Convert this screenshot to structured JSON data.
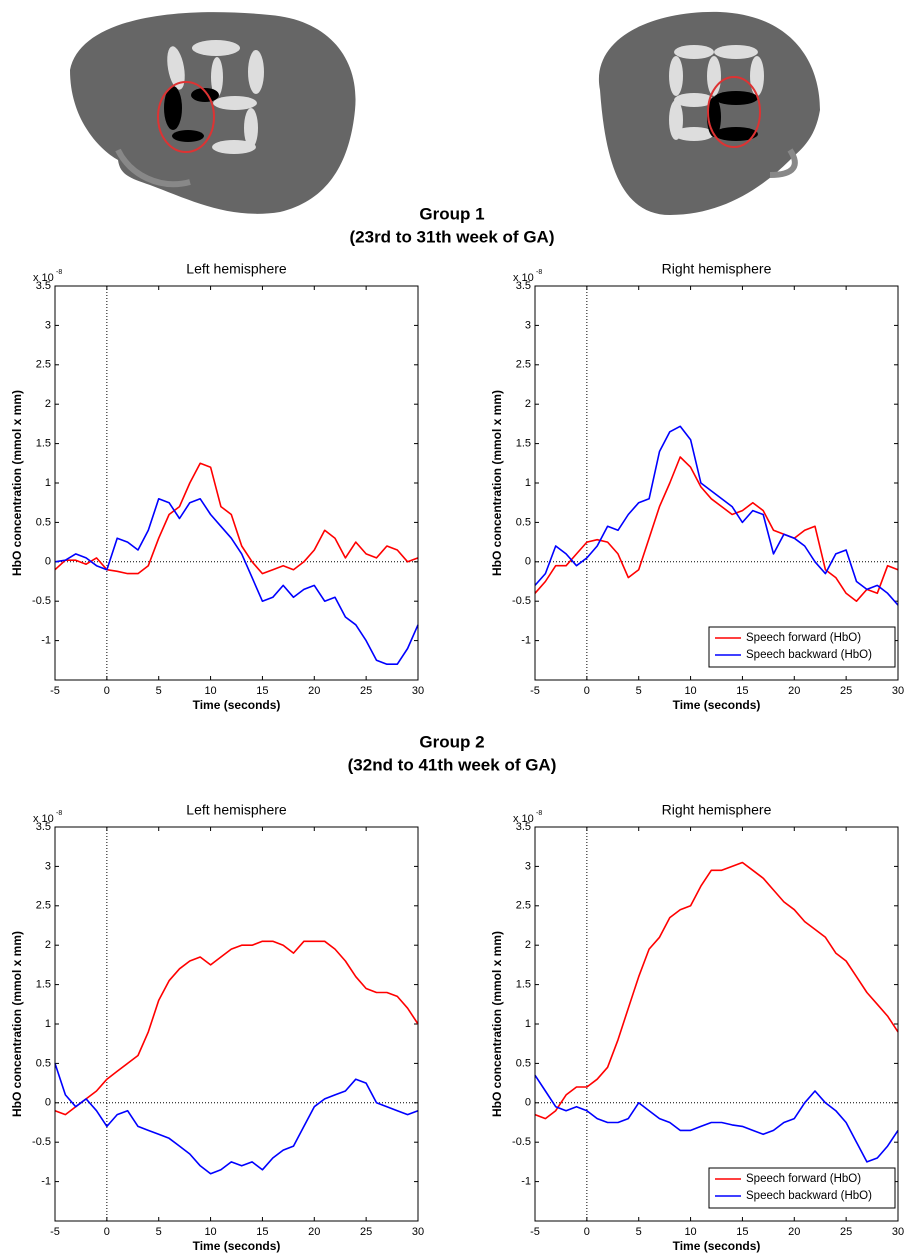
{
  "group1": {
    "title": "Group 1",
    "subtitle": "(23rd to 31th week of GA)"
  },
  "group2": {
    "title": "Group 2",
    "subtitle": "(32nd to 41th week of GA)"
  },
  "chart_data": [
    {
      "type": "line",
      "title": "Left hemisphere",
      "xlabel": "Time (seconds)",
      "ylabel": "HbO concentration (mmol x mm)",
      "y_multiplier": "x 10",
      "y_exponent": "-8",
      "x": [
        -5,
        -4,
        -3,
        -2,
        -1,
        0,
        1,
        2,
        3,
        4,
        5,
        6,
        7,
        8,
        9,
        10,
        11,
        12,
        13,
        14,
        15,
        16,
        17,
        18,
        19,
        20,
        21,
        22,
        23,
        24,
        25,
        26,
        27,
        28,
        29,
        30
      ],
      "series": [
        {
          "name": "Speech forward (HbO)",
          "color": "#ff0000",
          "values": [
            -0.1,
            0.02,
            0.02,
            -0.03,
            0.05,
            -0.1,
            -0.12,
            -0.15,
            -0.15,
            -0.05,
            0.3,
            0.6,
            0.7,
            1.0,
            1.25,
            1.2,
            0.7,
            0.6,
            0.2,
            0.0,
            -0.15,
            -0.1,
            -0.05,
            -0.1,
            0.0,
            0.15,
            0.4,
            0.3,
            0.05,
            0.25,
            0.1,
            0.05,
            0.2,
            0.15,
            0.0,
            0.05
          ]
        },
        {
          "name": "Speech backward (HbO)",
          "color": "#0000ff",
          "values": [
            0,
            0.02,
            0.1,
            0.05,
            -0.05,
            -0.1,
            0.3,
            0.25,
            0.15,
            0.4,
            0.8,
            0.75,
            0.55,
            0.75,
            0.8,
            0.6,
            0.45,
            0.3,
            0.1,
            -0.2,
            -0.5,
            -0.45,
            -0.3,
            -0.45,
            -0.35,
            -0.3,
            -0.5,
            -0.45,
            -0.7,
            -0.8,
            -1.0,
            -1.25,
            -1.3,
            -1.3,
            -1.1,
            -0.8
          ]
        }
      ],
      "xlim": [
        -5,
        30
      ],
      "ylim": [
        -1.5,
        3.5
      ],
      "xticks": [
        -5,
        0,
        5,
        10,
        15,
        20,
        25,
        30
      ],
      "yticks": [
        -1,
        -0.5,
        0,
        0.5,
        1,
        1.5,
        2,
        2.5,
        3,
        3.5
      ]
    },
    {
      "type": "line",
      "title": "Right hemisphere",
      "xlabel": "Time (seconds)",
      "ylabel": "HbO concentration (mmol x mm)",
      "y_multiplier": "x 10",
      "y_exponent": "-8",
      "legend": "lower right",
      "x": [
        -5,
        -4,
        -3,
        -2,
        -1,
        0,
        1,
        2,
        3,
        4,
        5,
        6,
        7,
        8,
        9,
        10,
        11,
        12,
        13,
        14,
        15,
        16,
        17,
        18,
        19,
        20,
        21,
        22,
        23,
        24,
        25,
        26,
        27,
        28,
        29,
        30
      ],
      "series": [
        {
          "name": "Speech forward (HbO)",
          "color": "#ff0000",
          "values": [
            -0.4,
            -0.25,
            -0.05,
            -0.05,
            0.1,
            0.25,
            0.28,
            0.25,
            0.1,
            -0.2,
            -0.1,
            0.3,
            0.7,
            1.0,
            1.33,
            1.2,
            0.95,
            0.8,
            0.7,
            0.6,
            0.65,
            0.75,
            0.65,
            0.4,
            0.35,
            0.3,
            0.4,
            0.45,
            -0.1,
            -0.2,
            -0.4,
            -0.5,
            -0.35,
            -0.4,
            -0.05,
            -0.1
          ]
        },
        {
          "name": "Speech backward (HbO)",
          "color": "#0000ff",
          "values": [
            -0.3,
            -0.15,
            0.2,
            0.1,
            -0.05,
            0.05,
            0.2,
            0.45,
            0.4,
            0.6,
            0.75,
            0.8,
            1.4,
            1.65,
            1.72,
            1.55,
            1.0,
            0.9,
            0.8,
            0.7,
            0.5,
            0.65,
            0.6,
            0.1,
            0.35,
            0.3,
            0.2,
            0.0,
            -0.15,
            0.1,
            0.15,
            -0.25,
            -0.35,
            -0.3,
            -0.4,
            -0.55
          ]
        }
      ],
      "xlim": [
        -5,
        30
      ],
      "ylim": [
        -1.5,
        3.5
      ],
      "xticks": [
        -5,
        0,
        5,
        10,
        15,
        20,
        25,
        30
      ],
      "yticks": [
        -1,
        -0.5,
        0,
        0.5,
        1,
        1.5,
        2,
        2.5,
        3,
        3.5
      ]
    },
    {
      "type": "line",
      "title": "Left hemisphere",
      "xlabel": "Time (seconds)",
      "ylabel": "HbO concentration (mmol x mm)",
      "y_multiplier": "x 10",
      "y_exponent": "-8",
      "x": [
        -5,
        -4,
        -3,
        -2,
        -1,
        0,
        1,
        2,
        3,
        4,
        5,
        6,
        7,
        8,
        9,
        10,
        11,
        12,
        13,
        14,
        15,
        16,
        17,
        18,
        19,
        20,
        21,
        22,
        23,
        24,
        25,
        26,
        27,
        28,
        29,
        30
      ],
      "series": [
        {
          "name": "Speech forward (HbO)",
          "color": "#ff0000",
          "values": [
            -0.1,
            -0.15,
            -0.05,
            0.05,
            0.15,
            0.3,
            0.4,
            0.5,
            0.6,
            0.9,
            1.3,
            1.55,
            1.7,
            1.8,
            1.85,
            1.75,
            1.85,
            1.95,
            2.0,
            2.0,
            2.05,
            2.05,
            2.0,
            1.9,
            2.05,
            2.05,
            2.05,
            1.95,
            1.8,
            1.6,
            1.45,
            1.4,
            1.4,
            1.35,
            1.2,
            1.0
          ]
        },
        {
          "name": "Speech backward (HbO)",
          "color": "#0000ff",
          "values": [
            0.5,
            0.1,
            -0.05,
            0.05,
            -0.1,
            -0.3,
            -0.15,
            -0.1,
            -0.3,
            -0.35,
            -0.4,
            -0.45,
            -0.55,
            -0.65,
            -0.8,
            -0.9,
            -0.85,
            -0.75,
            -0.8,
            -0.75,
            -0.85,
            -0.7,
            -0.6,
            -0.55,
            -0.3,
            -0.05,
            0.05,
            0.1,
            0.15,
            0.3,
            0.25,
            0.0,
            -0.05,
            -0.1,
            -0.15,
            -0.1
          ]
        }
      ],
      "xlim": [
        -5,
        30
      ],
      "ylim": [
        -1.5,
        3.5
      ],
      "xticks": [
        -5,
        0,
        5,
        10,
        15,
        20,
        25,
        30
      ],
      "yticks": [
        -1,
        -0.5,
        0,
        0.5,
        1,
        1.5,
        2,
        2.5,
        3,
        3.5
      ]
    },
    {
      "type": "line",
      "title": "Right hemisphere",
      "xlabel": "Time (seconds)",
      "ylabel": "HbO concentration (mmol x mm)",
      "y_multiplier": "x 10",
      "y_exponent": "-8",
      "legend": "lower right",
      "x": [
        -5,
        -4,
        -3,
        -2,
        -1,
        0,
        1,
        2,
        3,
        4,
        5,
        6,
        7,
        8,
        9,
        10,
        11,
        12,
        13,
        14,
        15,
        16,
        17,
        18,
        19,
        20,
        21,
        22,
        23,
        24,
        25,
        26,
        27,
        28,
        29,
        30
      ],
      "series": [
        {
          "name": "Speech forward (HbO)",
          "color": "#ff0000",
          "values": [
            -0.15,
            -0.2,
            -0.1,
            0.1,
            0.2,
            0.2,
            0.3,
            0.45,
            0.8,
            1.2,
            1.6,
            1.95,
            2.1,
            2.35,
            2.45,
            2.5,
            2.75,
            2.95,
            2.95,
            3.0,
            3.05,
            2.95,
            2.85,
            2.7,
            2.55,
            2.45,
            2.3,
            2.2,
            2.1,
            1.9,
            1.8,
            1.6,
            1.4,
            1.25,
            1.1,
            0.9
          ]
        },
        {
          "name": "Speech backward (HbO)",
          "color": "#0000ff",
          "values": [
            0.35,
            0.15,
            -0.05,
            -0.1,
            -0.05,
            -0.1,
            -0.2,
            -0.25,
            -0.25,
            -0.2,
            0.0,
            -0.1,
            -0.2,
            -0.25,
            -0.35,
            -0.35,
            -0.3,
            -0.25,
            -0.25,
            -0.28,
            -0.3,
            -0.35,
            -0.4,
            -0.35,
            -0.25,
            -0.2,
            0.0,
            0.15,
            0.0,
            -0.1,
            -0.25,
            -0.5,
            -0.75,
            -0.7,
            -0.55,
            -0.35
          ]
        }
      ],
      "xlim": [
        -5,
        30
      ],
      "ylim": [
        -1.5,
        3.5
      ],
      "xticks": [
        -5,
        0,
        5,
        10,
        15,
        20,
        25,
        30
      ],
      "yticks": [
        -1,
        -0.5,
        0,
        0.5,
        1,
        1.5,
        2,
        2.5,
        3,
        3.5
      ]
    }
  ]
}
